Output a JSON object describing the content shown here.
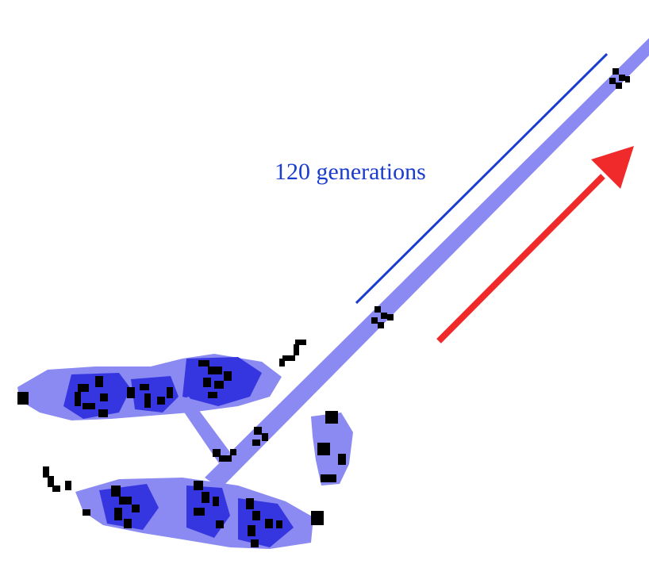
{
  "annotation": {
    "label": "120 generations"
  },
  "colors": {
    "background": "#ffffff",
    "trail": "#8a8af2",
    "dense": "#3636e0",
    "cell": "#000000",
    "annotation": "#1a3ccf",
    "arrow": "#f02a2a"
  }
}
